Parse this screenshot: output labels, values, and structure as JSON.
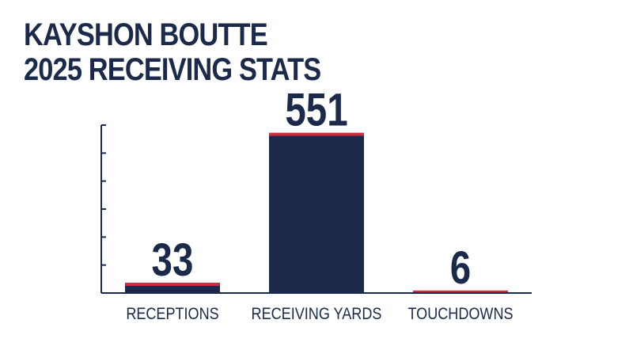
{
  "title_lines": [
    "KAYSHON BOUTTE",
    "2025 RECEIVING STATS"
  ],
  "colors": {
    "bar": "#1b2a4a",
    "accent": "#c8303f",
    "axis": "#1b2a4a",
    "text": "#1b2a4a"
  },
  "chart_data": {
    "type": "bar",
    "categories": [
      "RECEPTIONS",
      "RECEIVING YARDS",
      "TOUCHDOWNS"
    ],
    "values": [
      33,
      551,
      6
    ],
    "data_labels": [
      "33",
      "551",
      "6"
    ],
    "title": "KAYSHON BOUTTE 2025 RECEIVING STATS",
    "xlabel": "",
    "ylabel": "",
    "ylim": [
      0,
      580
    ],
    "y_ticks": 6,
    "grid": false,
    "legend": "none"
  }
}
